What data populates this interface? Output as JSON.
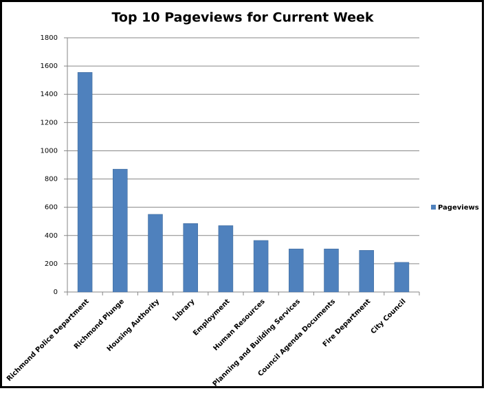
{
  "chart_data": {
    "type": "bar",
    "title": "Top 10 Pageviews for Current Week",
    "categories": [
      "Richmond Police Department",
      "Richmond Plunge",
      "Housing Authority",
      "Library",
      "Employment",
      "Human Resources",
      "Planning and Building Services",
      "Council Agenda Documents",
      "Fire Department",
      "City Council"
    ],
    "series": [
      {
        "name": "Pageviews",
        "color": "#4f81bd",
        "values": [
          1555,
          870,
          550,
          485,
          470,
          365,
          305,
          305,
          295,
          210
        ]
      }
    ],
    "ylim": [
      0,
      1800
    ],
    "yticks": [
      0,
      200,
      400,
      600,
      800,
      1000,
      1200,
      1400,
      1600,
      1800
    ],
    "grid": true,
    "legend": "right"
  }
}
